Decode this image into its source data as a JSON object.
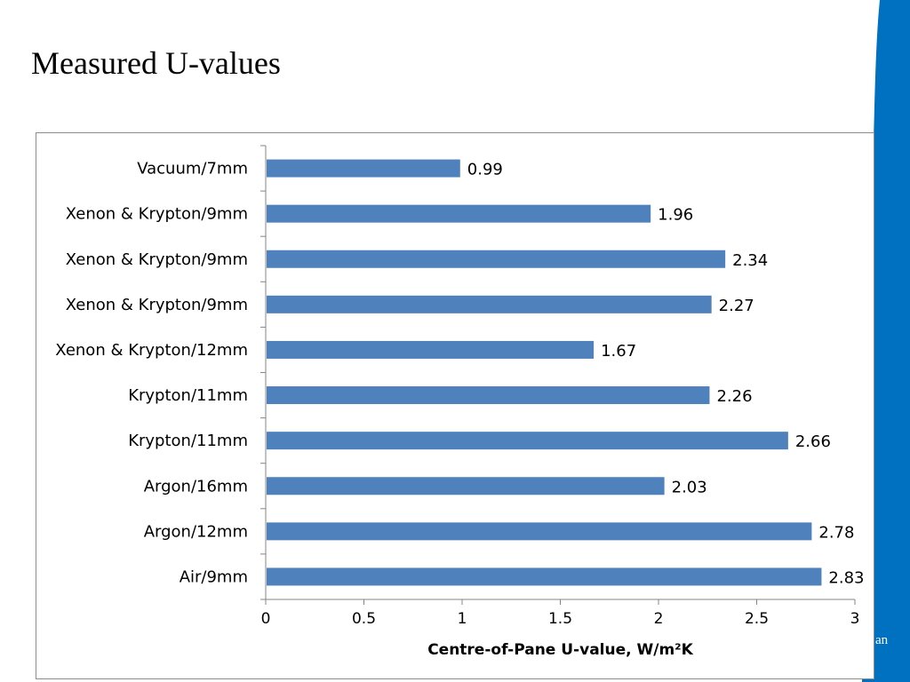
{
  "slide": {
    "title": "Measured U-values",
    "edge_text": "an",
    "accent_color": "#0070c0"
  },
  "chart_data": {
    "type": "bar",
    "orientation": "horizontal",
    "categories": [
      "Vacuum/7mm",
      "Xenon & Krypton/9mm",
      "Xenon & Krypton/9mm",
      "Xenon & Krypton/9mm",
      "Xenon & Krypton/12mm",
      "Krypton/11mm",
      "Krypton/11mm",
      "Argon/16mm",
      "Argon/12mm",
      "Air/9mm"
    ],
    "values": [
      0.99,
      1.96,
      2.34,
      2.27,
      1.67,
      2.26,
      2.66,
      2.03,
      2.78,
      2.83
    ],
    "value_labels": [
      "0.99",
      "1.96",
      "2.34",
      "2.27",
      "1.67",
      "2.26",
      "2.66",
      "2.03",
      "2.78",
      "2.83"
    ],
    "xlabel": "Centre-of-Pane U-value, W/m²K",
    "xlim": [
      0,
      3
    ],
    "xticks": [
      "0",
      "0.5",
      "1",
      "1.5",
      "2",
      "2.5",
      "3"
    ],
    "bar_color": "#4f81bd",
    "grid": false,
    "legend": "none"
  }
}
